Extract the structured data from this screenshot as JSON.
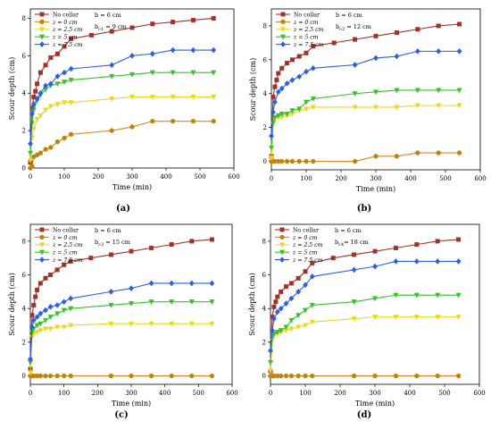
{
  "figure": {
    "colors": {
      "No collar": "#a0322a",
      "z = 0 cm": "#d9861c",
      "z = 2.5 cm": "#e8d820",
      "z = 5 cm": "#36c22a",
      "z = 7.5 cm": "#2f5fe0",
      "marker_z0": "#b8860b"
    }
  },
  "chart_data": [
    {
      "type": "line",
      "panel_label": "(a)",
      "xlabel": "Time (min)",
      "ylabel": "Scour depth (cm)",
      "xlim": [
        0,
        600
      ],
      "ylim": [
        0,
        8.5
      ],
      "xticks": [
        "0",
        "100",
        "200",
        "300",
        "400",
        "500",
        "600"
      ],
      "yticks": [
        "0",
        "2",
        "4",
        "6",
        "8"
      ],
      "grid": false,
      "legend_position": "top-left",
      "annotation_b": "b = 6 cm",
      "annotation_bc": "b",
      "annotation_bc_sub": "c1",
      "annotation_bc_val": " = 9 cm",
      "series": [
        {
          "name": "No collar",
          "x": [
            0,
            5,
            10,
            15,
            20,
            30,
            45,
            60,
            80,
            100,
            120,
            180,
            240,
            300,
            360,
            420,
            480,
            540
          ],
          "y": [
            0.3,
            3.2,
            3.8,
            4.1,
            4.5,
            5.1,
            5.5,
            5.9,
            6.1,
            6.5,
            6.9,
            7.1,
            7.3,
            7.5,
            7.7,
            7.8,
            7.9,
            8.0
          ]
        },
        {
          "name": "z = 0 cm",
          "x": [
            0,
            5,
            10,
            20,
            30,
            45,
            60,
            80,
            100,
            120,
            240,
            300,
            360,
            420,
            480,
            540
          ],
          "y": [
            0,
            0.1,
            0.6,
            0.7,
            0.8,
            1.0,
            1.1,
            1.4,
            1.6,
            1.8,
            2.0,
            2.2,
            2.5,
            2.5,
            2.5,
            2.5
          ]
        },
        {
          "name": "z = 2.5 cm",
          "x": [
            0,
            5,
            10,
            20,
            30,
            45,
            60,
            80,
            100,
            120,
            240,
            300,
            360,
            420,
            480,
            540
          ],
          "y": [
            0.4,
            1.6,
            2.1,
            2.6,
            2.8,
            3.1,
            3.3,
            3.4,
            3.5,
            3.5,
            3.7,
            3.8,
            3.8,
            3.8,
            3.8,
            3.8
          ]
        },
        {
          "name": "z = 5 cm",
          "x": [
            0,
            5,
            10,
            20,
            30,
            45,
            60,
            80,
            100,
            120,
            240,
            300,
            360,
            420,
            480,
            540
          ],
          "y": [
            0.8,
            2.4,
            3.1,
            3.6,
            3.9,
            4.2,
            4.4,
            4.5,
            4.6,
            4.7,
            4.9,
            5.0,
            5.1,
            5.1,
            5.1,
            5.1
          ]
        },
        {
          "name": "z = 7.5 cm",
          "x": [
            0,
            5,
            10,
            20,
            30,
            45,
            60,
            80,
            100,
            120,
            240,
            300,
            360,
            420,
            480,
            540
          ],
          "y": [
            1.3,
            2.9,
            3.4,
            3.7,
            4.0,
            4.4,
            4.5,
            4.9,
            5.1,
            5.3,
            5.5,
            6.0,
            6.1,
            6.3,
            6.3,
            6.3
          ]
        }
      ]
    },
    {
      "type": "line",
      "panel_label": "(b)",
      "xlabel": "Time (min)",
      "ylabel": "Scour depth (cm)",
      "xlim": [
        0,
        600
      ],
      "ylim": [
        -0.5,
        9
      ],
      "xticks": [
        "0",
        "100",
        "200",
        "300",
        "400",
        "500",
        "600"
      ],
      "yticks": [
        "0",
        "2",
        "4",
        "6",
        "8"
      ],
      "grid": false,
      "legend_position": "top-left",
      "annotation_b": "b = 6 cm",
      "annotation_bc": "b",
      "annotation_bc_sub": "c2",
      "annotation_bc_val": " = 12 cm",
      "series": [
        {
          "name": "No collar",
          "x": [
            0,
            5,
            10,
            15,
            20,
            30,
            45,
            60,
            80,
            100,
            120,
            180,
            240,
            300,
            360,
            420,
            480,
            540
          ],
          "y": [
            0.3,
            3.8,
            4.4,
            4.8,
            5.2,
            5.5,
            5.8,
            6.0,
            6.2,
            6.4,
            6.8,
            7.0,
            7.2,
            7.4,
            7.6,
            7.8,
            8.0,
            8.1
          ]
        },
        {
          "name": "z = 0 cm",
          "x": [
            0,
            5,
            10,
            20,
            30,
            45,
            60,
            80,
            100,
            120,
            240,
            300,
            360,
            420,
            480,
            540
          ],
          "y": [
            0,
            0,
            0,
            0,
            0,
            0,
            0,
            0,
            0,
            0,
            0,
            0.3,
            0.3,
            0.5,
            0.5,
            0.5
          ]
        },
        {
          "name": "z = 2.5 cm",
          "x": [
            0,
            5,
            10,
            20,
            30,
            45,
            60,
            80,
            100,
            120,
            240,
            300,
            360,
            420,
            480,
            540
          ],
          "y": [
            0.2,
            2.2,
            2.5,
            2.6,
            2.6,
            2.7,
            2.8,
            3.0,
            3.1,
            3.2,
            3.2,
            3.2,
            3.2,
            3.3,
            3.3,
            3.3
          ]
        },
        {
          "name": "z = 5 cm",
          "x": [
            0,
            5,
            10,
            20,
            30,
            45,
            60,
            80,
            100,
            120,
            240,
            300,
            360,
            420,
            480,
            540
          ],
          "y": [
            0.8,
            2.3,
            2.6,
            2.7,
            2.8,
            2.8,
            3.0,
            3.1,
            3.5,
            3.7,
            4.0,
            4.1,
            4.2,
            4.2,
            4.2,
            4.2
          ]
        },
        {
          "name": "z = 7.5 cm",
          "x": [
            0,
            5,
            10,
            20,
            30,
            45,
            60,
            80,
            100,
            120,
            240,
            300,
            360,
            420,
            480,
            540
          ],
          "y": [
            1.5,
            2.9,
            3.5,
            4.1,
            4.3,
            4.6,
            4.8,
            5.0,
            5.3,
            5.5,
            5.7,
            6.1,
            6.2,
            6.5,
            6.5,
            6.5
          ]
        }
      ]
    },
    {
      "type": "line",
      "panel_label": "(c)",
      "xlabel": "Time (min)",
      "ylabel": "Scour depth (cm)",
      "xlim": [
        0,
        600
      ],
      "ylim": [
        -0.5,
        9
      ],
      "xticks": [
        "0",
        "100",
        "200",
        "300",
        "400",
        "500",
        "600"
      ],
      "yticks": [
        "0",
        "2",
        "4",
        "6",
        "8"
      ],
      "grid": false,
      "legend_position": "top-left",
      "annotation_b": "b = 6 cm",
      "annotation_bc": "b",
      "annotation_bc_sub": "c3",
      "annotation_bc_val": " = 15 cm",
      "series": [
        {
          "name": "No collar",
          "x": [
            0,
            5,
            10,
            15,
            20,
            30,
            45,
            60,
            80,
            100,
            120,
            180,
            240,
            300,
            360,
            420,
            480,
            540
          ],
          "y": [
            0.4,
            3.6,
            4.2,
            4.7,
            5.1,
            5.5,
            5.8,
            6.0,
            6.3,
            6.6,
            6.8,
            7.0,
            7.2,
            7.4,
            7.6,
            7.8,
            8.0,
            8.1
          ]
        },
        {
          "name": "z = 0 cm",
          "x": [
            0,
            5,
            10,
            20,
            30,
            45,
            60,
            80,
            100,
            120,
            240,
            300,
            360,
            420,
            480,
            540
          ],
          "y": [
            0,
            0,
            0,
            0,
            0,
            0,
            0,
            0,
            0,
            0,
            0,
            0,
            0,
            0,
            0,
            0
          ]
        },
        {
          "name": "z = 2.5 cm",
          "x": [
            0,
            5,
            10,
            20,
            30,
            45,
            60,
            80,
            100,
            120,
            240,
            300,
            360,
            420,
            480,
            540
          ],
          "y": [
            0.2,
            2.3,
            2.5,
            2.6,
            2.7,
            2.8,
            2.8,
            2.9,
            2.9,
            3.0,
            3.1,
            3.1,
            3.1,
            3.1,
            3.1,
            3.1
          ]
        },
        {
          "name": "z = 5 cm",
          "x": [
            0,
            5,
            10,
            20,
            30,
            45,
            60,
            80,
            100,
            120,
            240,
            300,
            360,
            420,
            480,
            540
          ],
          "y": [
            0.8,
            2.6,
            2.8,
            3.0,
            3.1,
            3.3,
            3.5,
            3.7,
            3.9,
            4.0,
            4.2,
            4.3,
            4.4,
            4.4,
            4.4,
            4.4
          ]
        },
        {
          "name": "z = 7.5 cm",
          "x": [
            0,
            5,
            10,
            20,
            30,
            45,
            60,
            80,
            100,
            120,
            240,
            300,
            360,
            420,
            480,
            540
          ],
          "y": [
            1.0,
            2.9,
            3.3,
            3.5,
            3.7,
            3.9,
            4.1,
            4.2,
            4.4,
            4.6,
            5.0,
            5.2,
            5.5,
            5.5,
            5.5,
            5.5
          ]
        }
      ]
    },
    {
      "type": "line",
      "panel_label": "(d)",
      "xlabel": "Time (min)",
      "ylabel": "Scour depth (cm)",
      "xlim": [
        0,
        600
      ],
      "ylim": [
        -0.5,
        9
      ],
      "xticks": [
        "0",
        "100",
        "200",
        "300",
        "400",
        "500",
        "600"
      ],
      "yticks": [
        "0",
        "2",
        "4",
        "6",
        "8"
      ],
      "grid": false,
      "legend_position": "top-left",
      "annotation_b": "b = 6  cm",
      "annotation_bc": "b",
      "annotation_bc_sub": "c4",
      "annotation_bc_val": "= 18 cm",
      "series": [
        {
          "name": "No collar",
          "x": [
            0,
            5,
            10,
            15,
            20,
            30,
            45,
            60,
            80,
            100,
            120,
            180,
            240,
            300,
            360,
            420,
            480,
            540
          ],
          "y": [
            0.3,
            3.5,
            4.1,
            4.4,
            4.7,
            5.0,
            5.3,
            5.5,
            5.8,
            6.2,
            6.7,
            7.0,
            7.2,
            7.4,
            7.6,
            7.8,
            8.0,
            8.1
          ]
        },
        {
          "name": "z = 0 cm",
          "x": [
            0,
            5,
            10,
            20,
            30,
            45,
            60,
            80,
            100,
            120,
            240,
            300,
            360,
            420,
            480,
            540
          ],
          "y": [
            0,
            0,
            0,
            0,
            0,
            0,
            0,
            0,
            0,
            0,
            0,
            0,
            0,
            0,
            0,
            0
          ]
        },
        {
          "name": "z = 2.5 cm",
          "x": [
            0,
            5,
            10,
            20,
            30,
            45,
            60,
            80,
            100,
            120,
            240,
            300,
            360,
            420,
            480,
            540
          ],
          "y": [
            0.3,
            2.1,
            2.4,
            2.5,
            2.6,
            2.7,
            2.8,
            2.9,
            3.0,
            3.2,
            3.4,
            3.5,
            3.5,
            3.5,
            3.5,
            3.5
          ]
        },
        {
          "name": "z = 5 cm",
          "x": [
            0,
            5,
            10,
            20,
            30,
            45,
            60,
            80,
            100,
            120,
            240,
            300,
            360,
            420,
            480,
            540
          ],
          "y": [
            0.8,
            2.3,
            2.5,
            2.6,
            2.7,
            2.9,
            3.3,
            3.6,
            3.9,
            4.2,
            4.4,
            4.6,
            4.8,
            4.8,
            4.8,
            4.8
          ]
        },
        {
          "name": "z = 7.5 cm",
          "x": [
            0,
            5,
            10,
            20,
            30,
            45,
            60,
            80,
            100,
            120,
            240,
            300,
            360,
            420,
            480,
            540
          ],
          "y": [
            1.5,
            2.7,
            3.4,
            3.8,
            4.0,
            4.3,
            4.6,
            5.0,
            5.4,
            5.9,
            6.3,
            6.5,
            6.8,
            6.8,
            6.8,
            6.8
          ]
        }
      ]
    }
  ]
}
